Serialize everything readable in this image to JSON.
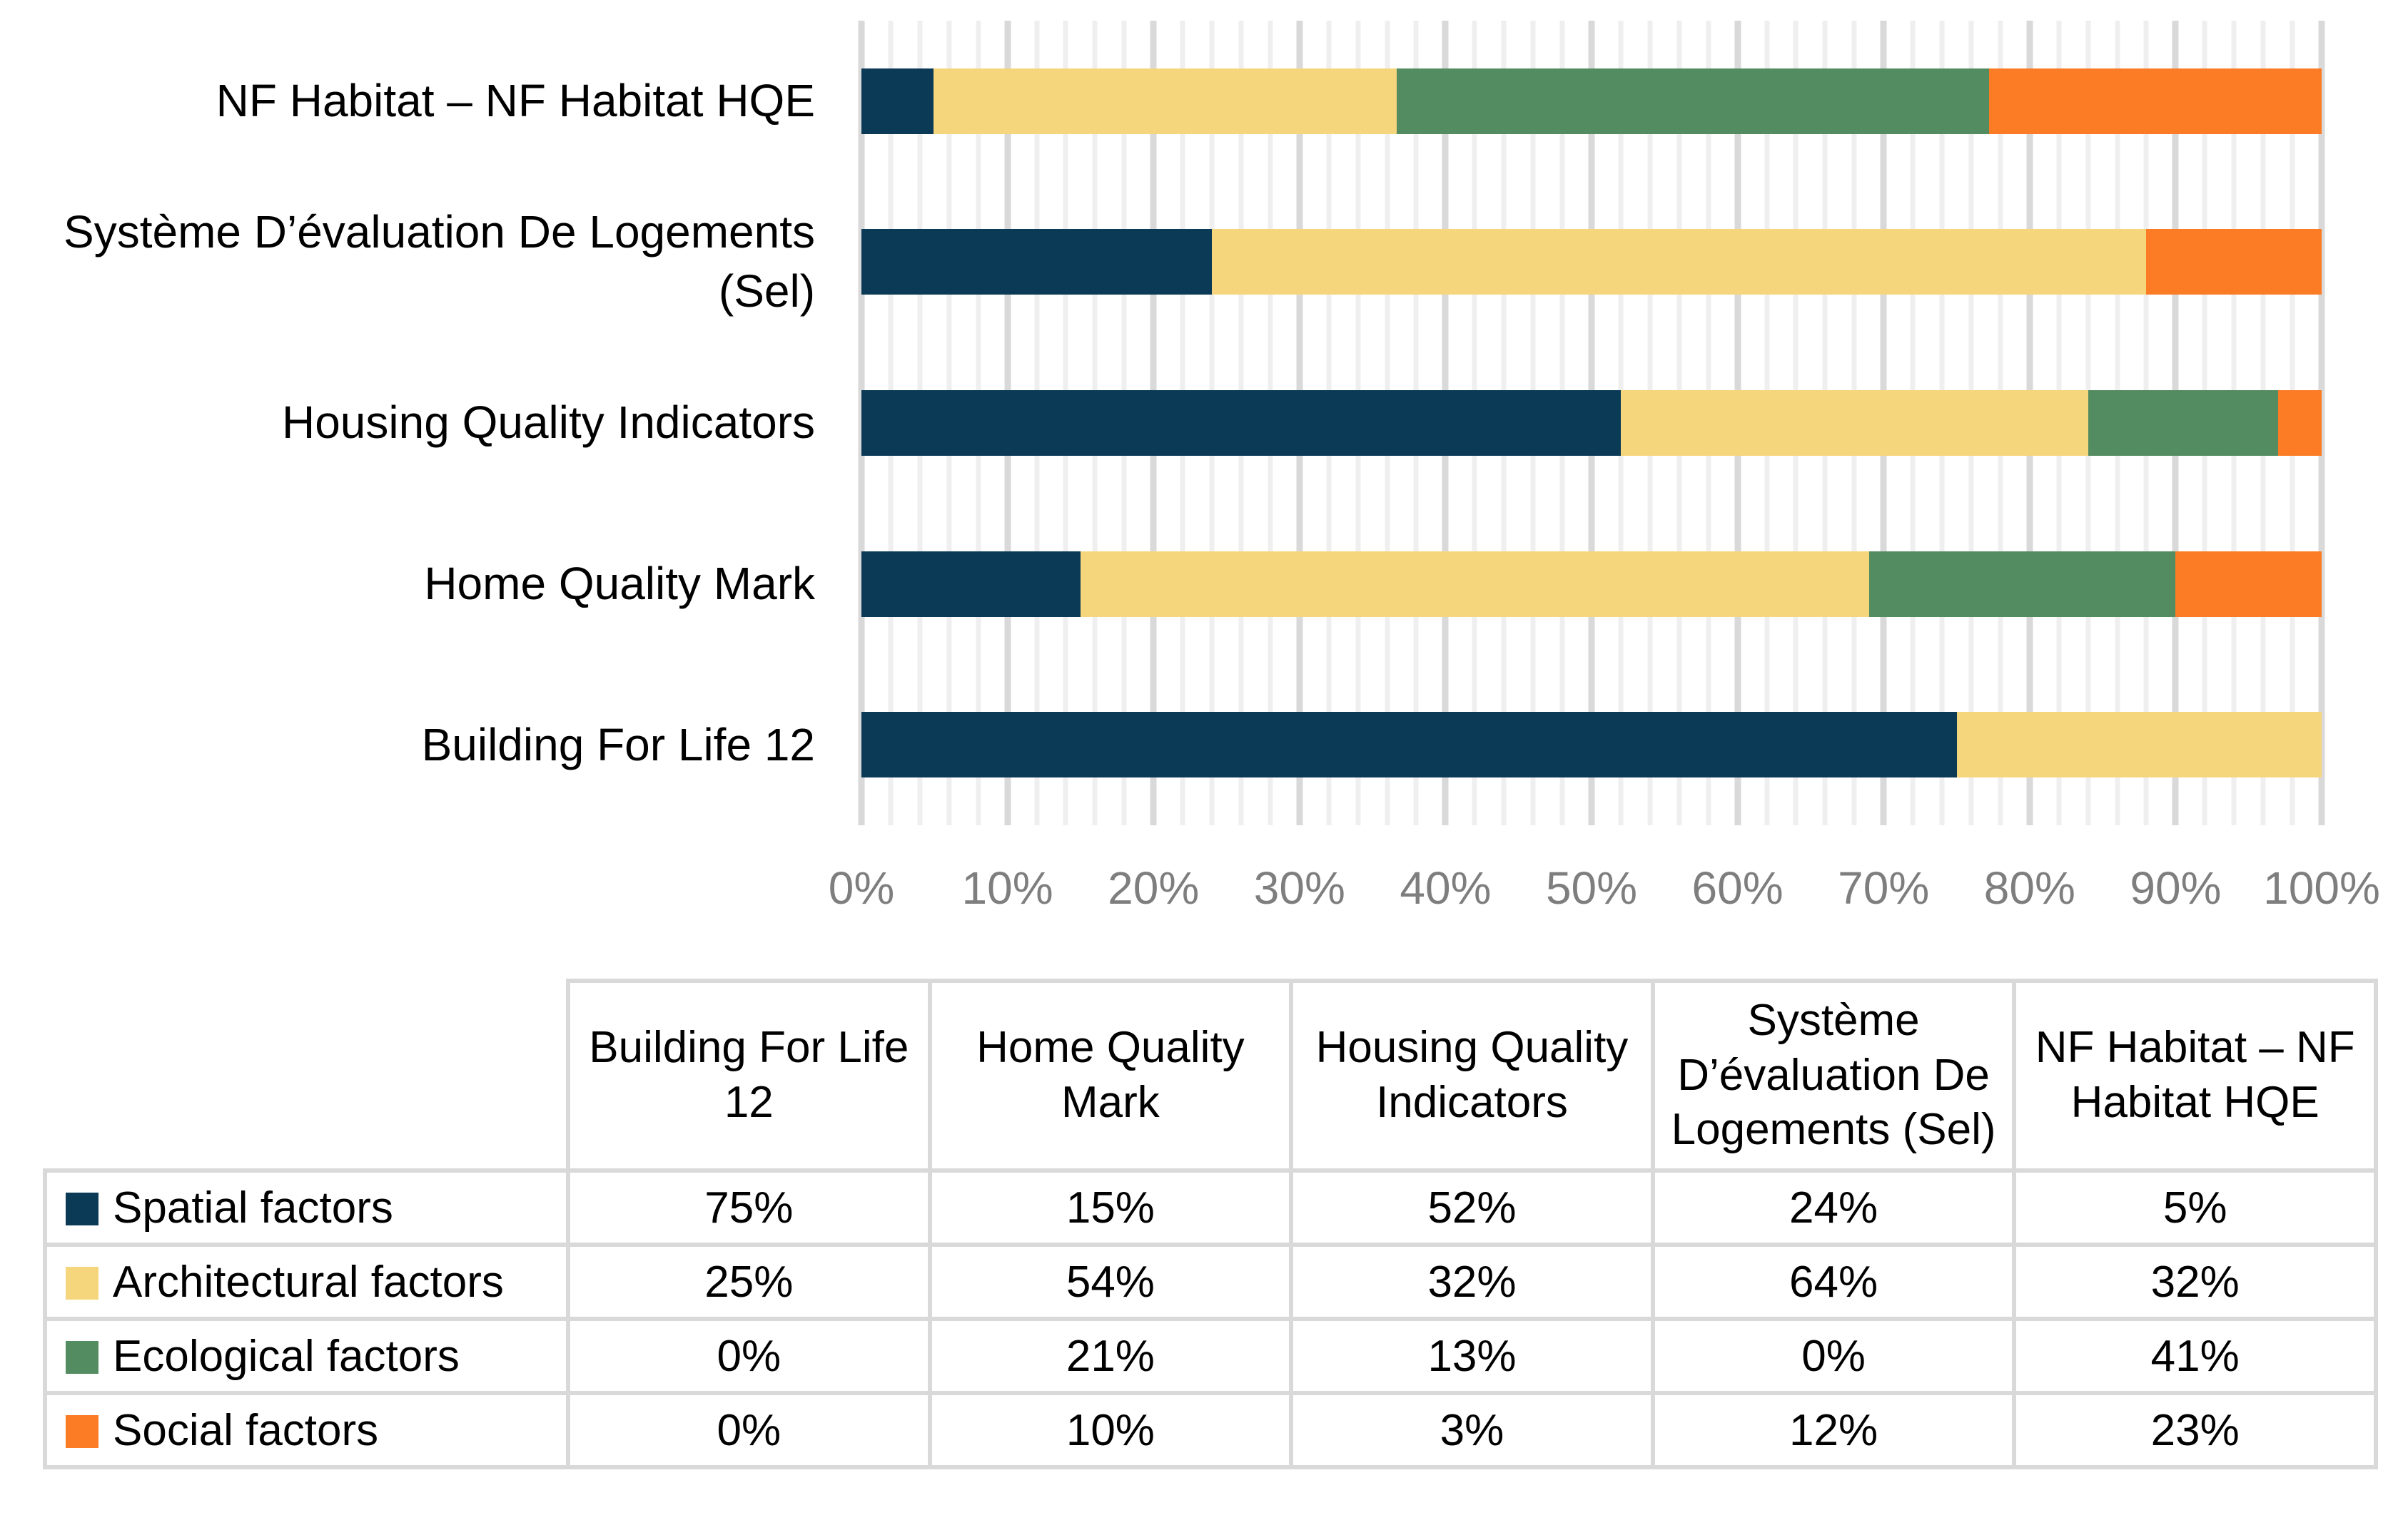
{
  "chart_data": {
    "type": "bar",
    "variant": "horizontal-100pct-stacked",
    "title": "",
    "xlabel": "",
    "ylabel": "",
    "xlim": [
      0,
      100
    ],
    "x_ticks": [
      "0%",
      "10%",
      "20%",
      "30%",
      "40%",
      "50%",
      "60%",
      "70%",
      "80%",
      "90%",
      "100%"
    ],
    "gridlines": {
      "minor_step_pct": 2,
      "major_step_pct": 10,
      "minor_color": "#efefef",
      "major_color": "#d9d9d9"
    },
    "categories": [
      "Building For Life 12",
      "Home Quality Mark",
      "Housing Quality Indicators",
      "Système D’évaluation De Logements (Sel)",
      "NF Habitat – NF Habitat HQE"
    ],
    "bar_order_top_to_bottom": [
      "NF Habitat – NF Habitat HQE",
      "Système D’évaluation De Logements (Sel)",
      "Housing Quality Indicators",
      "Home Quality Mark",
      "Building For Life 12"
    ],
    "series": [
      {
        "name": "Spatial factors",
        "color": "#0b3a57",
        "values": [
          75,
          15,
          52,
          24,
          5
        ]
      },
      {
        "name": "Architectural factors",
        "color": "#f6d67c",
        "values": [
          25,
          54,
          32,
          64,
          32
        ]
      },
      {
        "name": "Ecological factors",
        "color": "#548c61",
        "values": [
          0,
          21,
          13,
          0,
          41
        ]
      },
      {
        "name": "Social factors",
        "color": "#fb7c24",
        "values": [
          0,
          10,
          3,
          12,
          23
        ]
      }
    ],
    "legend_position": "table-below",
    "axis_text_color": "#7e7e7e"
  },
  "table": {
    "corner_label": "",
    "column_headers": [
      "Building For Life 12",
      "Home Quality Mark",
      "Housing Quality Indicators",
      "Système D’évaluation De Logements (Sel)",
      "NF Habitat – NF Habitat HQE"
    ],
    "rows": [
      {
        "label": "Spatial factors",
        "swatch_color": "#0b3a57",
        "values": [
          "75%",
          "15%",
          "52%",
          "24%",
          "5%"
        ]
      },
      {
        "label": "Architectural factors",
        "swatch_color": "#f6d67c",
        "values": [
          "25%",
          "54%",
          "32%",
          "64%",
          "32%"
        ]
      },
      {
        "label": "Ecological factors",
        "swatch_color": "#548c61",
        "values": [
          "0%",
          "21%",
          "13%",
          "0%",
          "41%"
        ]
      },
      {
        "label": "Social factors",
        "swatch_color": "#fb7c24",
        "values": [
          "0%",
          "10%",
          "3%",
          "12%",
          "23%"
        ]
      }
    ]
  }
}
